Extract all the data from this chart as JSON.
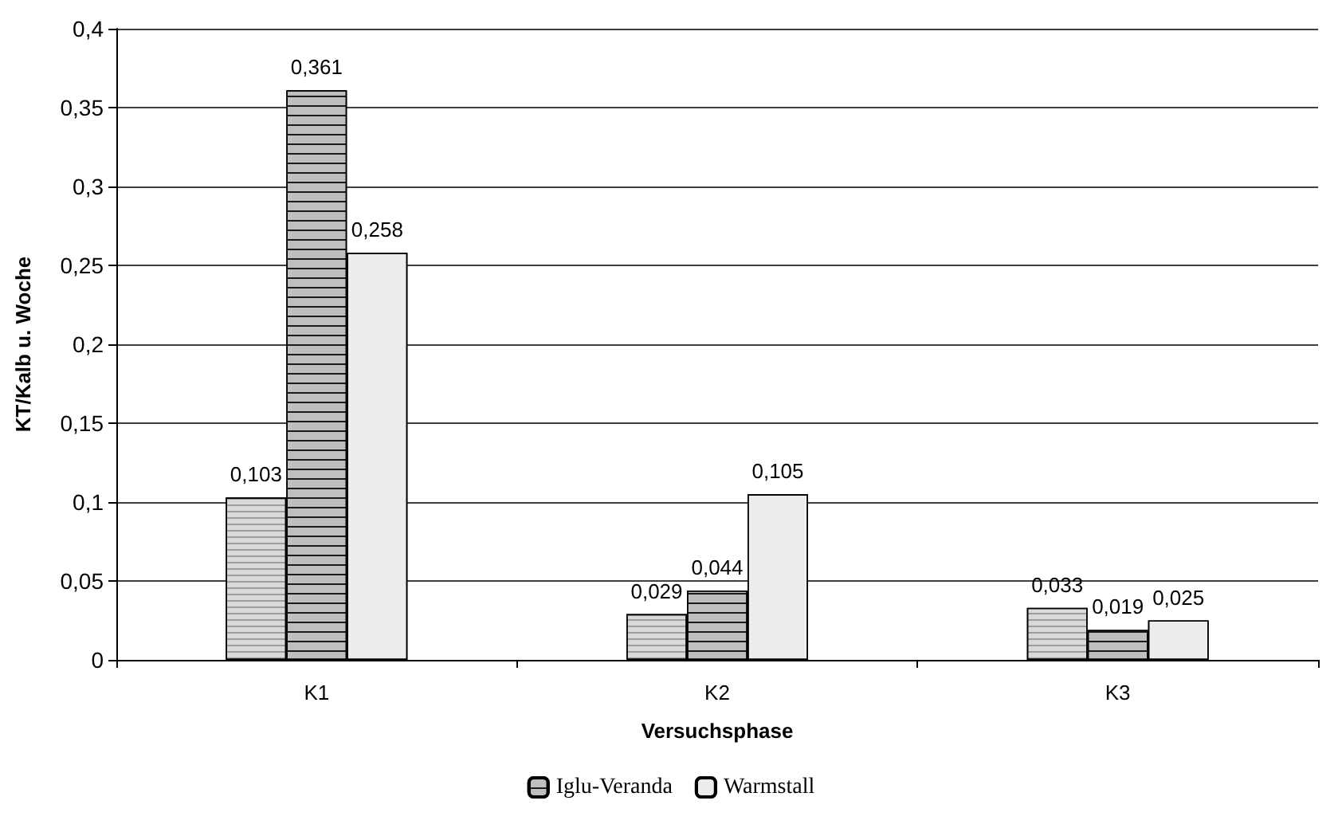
{
  "chart_data": {
    "type": "bar",
    "xlabel": "Versuchsphase",
    "ylabel": "KT/Kalb u. Woche",
    "categories": [
      "K1",
      "K2",
      "K3"
    ],
    "series": [
      {
        "color": "#d9d9d9",
        "values": [
          0.103,
          0.029,
          0.033
        ],
        "value_labels": [
          "0,103",
          "0,029",
          "0,033"
        ]
      },
      {
        "name": "Iglu-Veranda",
        "color": "#bfbfbf",
        "values": [
          0.361,
          0.044,
          0.019
        ],
        "value_labels": [
          "0,361",
          "0,044",
          "0,019"
        ]
      },
      {
        "name": "Warmstall",
        "color": "#ededed",
        "values": [
          0.258,
          0.105,
          0.025
        ],
        "value_labels": [
          "0,258",
          "0,105",
          "0,025"
        ]
      }
    ],
    "ylim": [
      0,
      0.4
    ],
    "yticks": [
      0,
      {
        "value": 0.05,
        "label": "0,05"
      },
      {
        "value": 0.1,
        "label": "0,1"
      },
      {
        "value": 0.15,
        "label": "0,15"
      },
      {
        "value": 0.2,
        "label": "0,2"
      },
      {
        "value": 0.25,
        "label": "0,25"
      },
      {
        "value": 0.3,
        "label": "0,3"
      },
      {
        "value": 0.35,
        "label": "0,35"
      },
      {
        "value": 0.4,
        "label": "0,4"
      }
    ],
    "grid": "y",
    "legend": "bottom"
  }
}
